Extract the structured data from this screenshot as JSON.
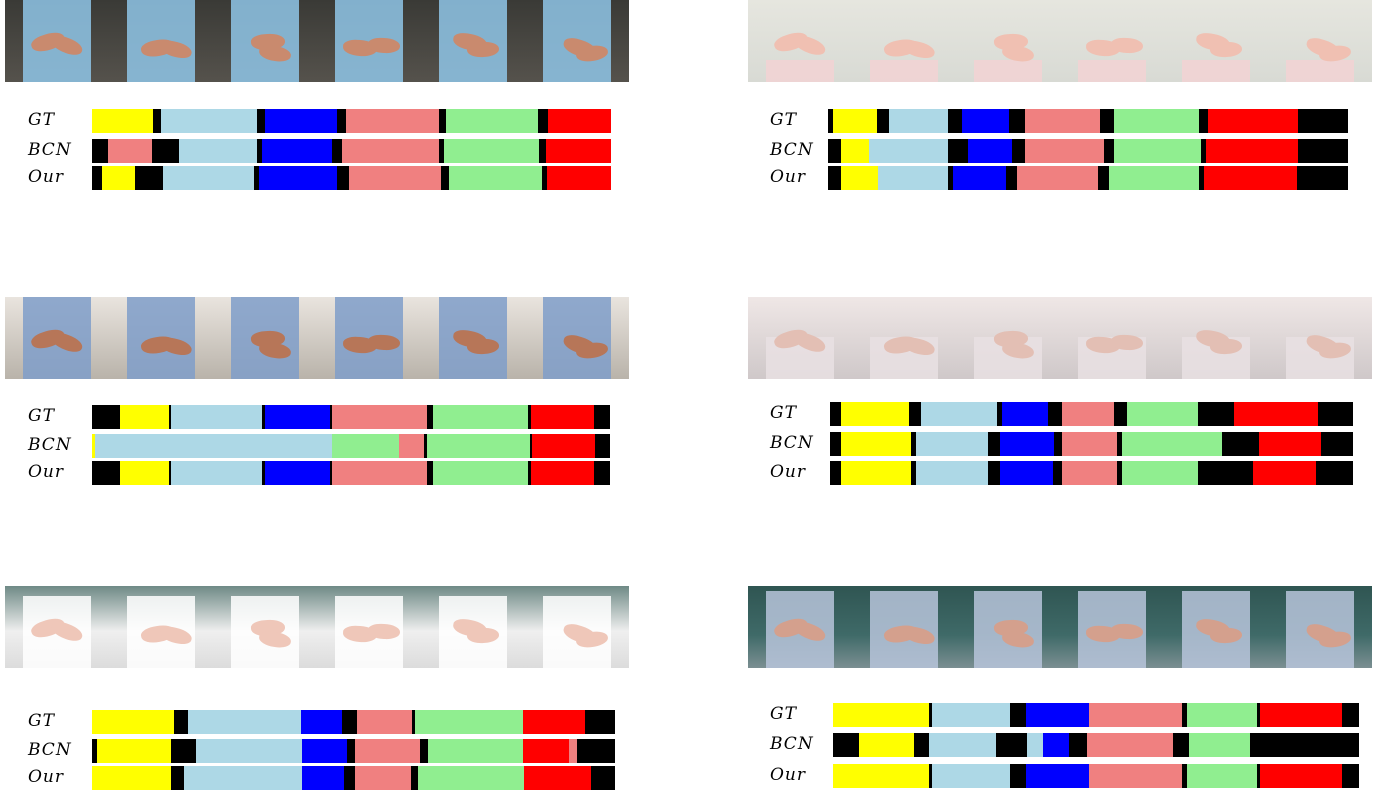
{
  "row_labels": [
    "GT",
    "BCN",
    "Our"
  ],
  "colors": {
    "k": "#000000",
    "y": "#ffff00",
    "c": "#add8e6",
    "b": "#0000ff",
    "p": "#f08080",
    "g": "#90ee90",
    "r": "#ff0000"
  },
  "panels": [
    {
      "name": "panel-top-left",
      "thumb_theme": "dark-scrubs",
      "rows": [
        [
          [
            "y",
            0.118
          ],
          [
            "k",
            0.016
          ],
          [
            "c",
            0.187
          ],
          [
            "k",
            0.016
          ],
          [
            "b",
            0.139
          ],
          [
            "k",
            0.018
          ],
          [
            "p",
            0.181
          ],
          [
            "k",
            0.013
          ],
          [
            "g",
            0.18
          ],
          [
            "k",
            0.02
          ],
          [
            "r",
            0.12
          ]
        ],
        [
          [
            "k",
            0.03
          ],
          [
            "p",
            0.086
          ],
          [
            "k",
            0.052
          ],
          [
            "c",
            0.151
          ],
          [
            "k",
            0.01
          ],
          [
            "b",
            0.135
          ],
          [
            "k",
            0.019
          ],
          [
            "p",
            0.186
          ],
          [
            "k",
            0.011
          ],
          [
            "g",
            0.182
          ],
          [
            "k",
            0.014
          ],
          [
            "r",
            0.124
          ]
        ],
        [
          [
            "k",
            0.02
          ],
          [
            "y",
            0.064
          ],
          [
            "k",
            0.054
          ],
          [
            "c",
            0.178
          ],
          [
            "k",
            0.01
          ],
          [
            "b",
            0.151
          ],
          [
            "k",
            0.025
          ],
          [
            "p",
            0.179
          ],
          [
            "k",
            0.015
          ],
          [
            "g",
            0.182
          ],
          [
            "k",
            0.01
          ],
          [
            "r",
            0.122
          ]
        ]
      ]
    },
    {
      "name": "panel-top-right",
      "thumb_theme": "sink-light",
      "rows": [
        [
          [
            "k",
            0.01
          ],
          [
            "y",
            0.085
          ],
          [
            "k",
            0.023
          ],
          [
            "c",
            0.113
          ],
          [
            "k",
            0.028
          ],
          [
            "b",
            0.089
          ],
          [
            "k",
            0.032
          ],
          [
            "p",
            0.145
          ],
          [
            "k",
            0.026
          ],
          [
            "g",
            0.163
          ],
          [
            "k",
            0.019
          ],
          [
            "r",
            0.173
          ],
          [
            "k",
            0.094
          ]
        ],
        [
          [
            "k",
            0.025
          ],
          [
            "y",
            0.054
          ],
          [
            "c",
            0.152
          ],
          [
            "k",
            0.038
          ],
          [
            "b",
            0.085
          ],
          [
            "k",
            0.025
          ],
          [
            "p",
            0.152
          ],
          [
            "k",
            0.021
          ],
          [
            "g",
            0.167
          ],
          [
            "k",
            0.01
          ],
          [
            "r",
            0.176
          ],
          [
            "k",
            0.095
          ]
        ],
        [
          [
            "k",
            0.025
          ],
          [
            "y",
            0.069
          ],
          [
            "c",
            0.132
          ],
          [
            "k",
            0.01
          ],
          [
            "b",
            0.1
          ],
          [
            "k",
            0.021
          ],
          [
            "p",
            0.153
          ],
          [
            "k",
            0.021
          ],
          [
            "g",
            0.169
          ],
          [
            "k",
            0.01
          ],
          [
            "r",
            0.176
          ],
          [
            "k",
            0.094
          ]
        ]
      ]
    },
    {
      "name": "panel-mid-left",
      "thumb_theme": "faucet-blue",
      "rows": [
        [
          [
            "k",
            0.055
          ],
          [
            "y",
            0.093
          ],
          [
            "k",
            0.005
          ],
          [
            "c",
            0.176
          ],
          [
            "k",
            0.005
          ],
          [
            "b",
            0.126
          ],
          [
            "k",
            0.005
          ],
          [
            "p",
            0.183
          ],
          [
            "k",
            0.012
          ],
          [
            "g",
            0.184
          ],
          [
            "k",
            0.005
          ],
          [
            "r",
            0.122
          ],
          [
            "k",
            0.029
          ]
        ],
        [
          [
            "y",
            0.005
          ],
          [
            "c",
            0.459
          ],
          [
            "g",
            0.13
          ],
          [
            "p",
            0.048
          ],
          [
            "k",
            0.005
          ],
          [
            "g",
            0.2
          ],
          [
            "k",
            0.005
          ],
          [
            "r",
            0.12
          ],
          [
            "k",
            0.028
          ]
        ],
        [
          [
            "k",
            0.055
          ],
          [
            "y",
            0.093
          ],
          [
            "k",
            0.005
          ],
          [
            "c",
            0.176
          ],
          [
            "k",
            0.005
          ],
          [
            "b",
            0.126
          ],
          [
            "k",
            0.005
          ],
          [
            "p",
            0.183
          ],
          [
            "k",
            0.012
          ],
          [
            "g",
            0.184
          ],
          [
            "k",
            0.005
          ],
          [
            "r",
            0.122
          ],
          [
            "k",
            0.029
          ]
        ]
      ]
    },
    {
      "name": "panel-mid-right",
      "thumb_theme": "blue-sponge",
      "rows": [
        [
          [
            "k",
            0.02
          ],
          [
            "y",
            0.129
          ],
          [
            "k",
            0.023
          ],
          [
            "c",
            0.144
          ],
          [
            "k",
            0.01
          ],
          [
            "b",
            0.086
          ],
          [
            "k",
            0.028
          ],
          [
            "p",
            0.097
          ],
          [
            "k",
            0.026
          ],
          [
            "g",
            0.134
          ],
          [
            "k",
            0.068
          ],
          [
            "r",
            0.159
          ],
          [
            "k",
            0.064
          ]
        ],
        [
          [
            "k",
            0.02
          ],
          [
            "y",
            0.133
          ],
          [
            "k",
            0.01
          ],
          [
            "c",
            0.136
          ],
          [
            "k",
            0.023
          ],
          [
            "b",
            0.103
          ],
          [
            "k",
            0.014
          ],
          [
            "p",
            0.105
          ],
          [
            "k",
            0.01
          ],
          [
            "g",
            0.189
          ],
          [
            "k",
            0.069
          ],
          [
            "r",
            0.119
          ],
          [
            "k",
            0.058
          ]
        ],
        [
          [
            "k",
            0.02
          ],
          [
            "y",
            0.133
          ],
          [
            "k",
            0.01
          ],
          [
            "c",
            0.136
          ],
          [
            "k",
            0.023
          ],
          [
            "b",
            0.101
          ],
          [
            "k",
            0.017
          ],
          [
            "p",
            0.104
          ],
          [
            "k",
            0.01
          ],
          [
            "g",
            0.144
          ],
          [
            "k",
            0.103
          ],
          [
            "r",
            0.119
          ],
          [
            "k",
            0.069
          ]
        ]
      ]
    },
    {
      "name": "panel-bottom-left",
      "thumb_theme": "green-sink",
      "rows": [
        [
          [
            "y",
            0.158
          ],
          [
            "k",
            0.027
          ],
          [
            "c",
            0.219
          ],
          [
            "b",
            0.079
          ],
          [
            "k",
            0.029
          ],
          [
            "p",
            0.107
          ],
          [
            "k",
            0.005
          ],
          [
            "g",
            0.21
          ],
          [
            "r",
            0.12
          ],
          [
            "k",
            0.056
          ]
        ],
        [
          [
            "k",
            0.01
          ],
          [
            "y",
            0.14
          ],
          [
            "k",
            0.048
          ],
          [
            "c",
            0.201
          ],
          [
            "b",
            0.085
          ],
          [
            "k",
            0.015
          ],
          [
            "p",
            0.124
          ],
          [
            "k",
            0.014
          ],
          [
            "g",
            0.18
          ],
          [
            "r",
            0.087
          ],
          [
            "p",
            0.016
          ],
          [
            "k",
            0.07
          ]
        ],
        [
          [
            "y",
            0.151
          ],
          [
            "k",
            0.026
          ],
          [
            "c",
            0.226
          ],
          [
            "b",
            0.079
          ],
          [
            "k",
            0.021
          ],
          [
            "p",
            0.109
          ],
          [
            "k",
            0.012
          ],
          [
            "g",
            0.204
          ],
          [
            "r",
            0.128
          ],
          [
            "k",
            0.044
          ]
        ]
      ]
    },
    {
      "name": "panel-bottom-right",
      "thumb_theme": "teal-dark",
      "rows": [
        [
          [
            "y",
            0.181
          ],
          [
            "k",
            0.006
          ],
          [
            "c",
            0.146
          ],
          [
            "k",
            0.03
          ],
          [
            "b",
            0.119
          ],
          [
            "p",
            0.174
          ],
          [
            "k",
            0.011
          ],
          [
            "g",
            0.13
          ],
          [
            "k",
            0.006
          ],
          [
            "r",
            0.155
          ],
          [
            "k",
            0.03
          ]
        ],
        [
          [
            "k",
            0.05
          ],
          [
            "y",
            0.104
          ],
          [
            "k",
            0.03
          ],
          [
            "c",
            0.127
          ],
          [
            "k",
            0.06
          ],
          [
            "c",
            0.03
          ],
          [
            "b",
            0.05
          ],
          [
            "k",
            0.034
          ],
          [
            "p",
            0.165
          ],
          [
            "k",
            0.03
          ],
          [
            "g",
            0.118
          ],
          [
            "k",
            0.206
          ]
        ],
        [
          [
            "y",
            0.181
          ],
          [
            "k",
            0.006
          ],
          [
            "c",
            0.146
          ],
          [
            "k",
            0.03
          ],
          [
            "b",
            0.119
          ],
          [
            "p",
            0.174
          ],
          [
            "k",
            0.011
          ],
          [
            "g",
            0.13
          ],
          [
            "k",
            0.006
          ],
          [
            "r",
            0.155
          ],
          [
            "k",
            0.03
          ]
        ]
      ]
    }
  ]
}
